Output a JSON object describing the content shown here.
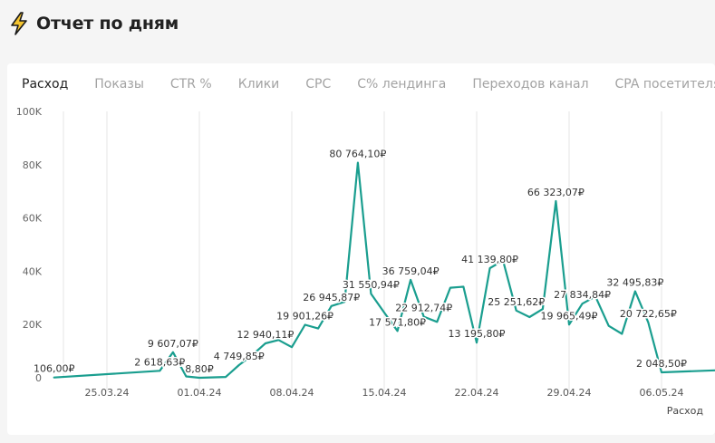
{
  "page": {
    "title": "Отчет по дням",
    "icon": "lightning-bolt-icon",
    "bolt_color": "#f4c430"
  },
  "tabs": [
    {
      "label": "Расход",
      "active": true
    },
    {
      "label": "Показы",
      "active": false
    },
    {
      "label": "CTR %",
      "active": false
    },
    {
      "label": "Клики",
      "active": false
    },
    {
      "label": "CPC",
      "active": false
    },
    {
      "label": "C% лендинга",
      "active": false
    },
    {
      "label": "Переходов канал",
      "active": false
    },
    {
      "label": "CPA посетителя",
      "active": false
    }
  ],
  "chart_data": {
    "type": "line",
    "xlabel": "Расход",
    "ylabel": "",
    "ylim": [
      0,
      100000
    ],
    "grid": "vertical",
    "line_color": "#1a9e8f",
    "y_ticks": [
      {
        "value": 0,
        "label": "0"
      },
      {
        "value": 20000,
        "label": "20K"
      },
      {
        "value": 40000,
        "label": "40K"
      },
      {
        "value": 60000,
        "label": "60K"
      },
      {
        "value": 80000,
        "label": "80K"
      },
      {
        "value": 100000,
        "label": "100K"
      }
    ],
    "x_ticks": [
      {
        "date": "2024-03-25",
        "label": "25.03.24"
      },
      {
        "date": "2024-04-01",
        "label": "01.04.24"
      },
      {
        "date": "2024-04-08",
        "label": "08.04.24"
      },
      {
        "date": "2024-04-15",
        "label": "15.04.24"
      },
      {
        "date": "2024-04-22",
        "label": "22.04.24"
      },
      {
        "date": "2024-04-29",
        "label": "29.04.24"
      },
      {
        "date": "2024-05-06",
        "label": "06.05.24"
      }
    ],
    "points": [
      {
        "date": "2024-03-21",
        "y": 106.0,
        "label": "106,00₽"
      },
      {
        "date": "2024-03-29",
        "y": 2618.63,
        "label": "2 618,63₽"
      },
      {
        "date": "2024-03-30",
        "y": 9607.07,
        "label": "9 607,07₽"
      },
      {
        "date": "2024-03-31",
        "y": 500
      },
      {
        "date": "2024-04-01",
        "y": 8.8,
        "label": "8,80₽"
      },
      {
        "date": "2024-04-03",
        "y": 300
      },
      {
        "date": "2024-04-04",
        "y": 4749.85,
        "label": "4 749,85₽"
      },
      {
        "date": "2024-04-05",
        "y": 8500
      },
      {
        "date": "2024-04-06",
        "y": 12940.11,
        "label": "12 940,11₽"
      },
      {
        "date": "2024-04-07",
        "y": 14200
      },
      {
        "date": "2024-04-08",
        "y": 11500
      },
      {
        "date": "2024-04-09",
        "y": 19901.26,
        "label": "19 901,26₽"
      },
      {
        "date": "2024-04-10",
        "y": 18500
      },
      {
        "date": "2024-04-11",
        "y": 26945.87,
        "label": "26 945,87₽"
      },
      {
        "date": "2024-04-12",
        "y": 28500
      },
      {
        "date": "2024-04-13",
        "y": 80764.1,
        "label": "80 764,10₽"
      },
      {
        "date": "2024-04-14",
        "y": 31550.94,
        "label": "31 550,94₽"
      },
      {
        "date": "2024-04-15",
        "y": 24500
      },
      {
        "date": "2024-04-16",
        "y": 17571.8,
        "label": "17 571,80₽"
      },
      {
        "date": "2024-04-17",
        "y": 36759.04,
        "label": "36 759,04₽"
      },
      {
        "date": "2024-04-18",
        "y": 22912.74,
        "label": "22 912,74₽"
      },
      {
        "date": "2024-04-19",
        "y": 21000
      },
      {
        "date": "2024-04-20",
        "y": 33800
      },
      {
        "date": "2024-04-21",
        "y": 34200
      },
      {
        "date": "2024-04-22",
        "y": 13195.8,
        "label": "13 195,80₽"
      },
      {
        "date": "2024-04-23",
        "y": 41139.8,
        "label": "41 139,80₽"
      },
      {
        "date": "2024-04-24",
        "y": 44000
      },
      {
        "date": "2024-04-25",
        "y": 25251.62,
        "label": "25 251,62₽"
      },
      {
        "date": "2024-04-26",
        "y": 22800
      },
      {
        "date": "2024-04-27",
        "y": 25800
      },
      {
        "date": "2024-04-28",
        "y": 66323.07,
        "label": "66 323,07₽"
      },
      {
        "date": "2024-04-29",
        "y": 19965.49,
        "label": "19 965,49₽"
      },
      {
        "date": "2024-04-30",
        "y": 27834.84,
        "label": "27 834,84₽"
      },
      {
        "date": "2024-05-01",
        "y": 30500
      },
      {
        "date": "2024-05-02",
        "y": 19500
      },
      {
        "date": "2024-05-03",
        "y": 16500
      },
      {
        "date": "2024-05-04",
        "y": 32495.83,
        "label": "32 495,83₽"
      },
      {
        "date": "2024-05-05",
        "y": 20722.65,
        "label": "20 722,65₽"
      },
      {
        "date": "2024-05-06",
        "y": 2048.5,
        "label": "2 048,50₽"
      },
      {
        "date": "2024-05-12",
        "y": 2800
      }
    ]
  }
}
